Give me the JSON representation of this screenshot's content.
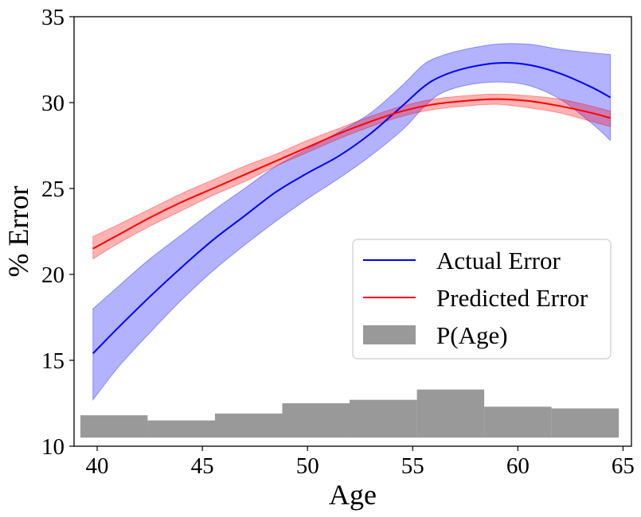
{
  "chart_data": {
    "type": "line",
    "title": "",
    "xlabel": "Age",
    "ylabel": "% Error",
    "xlim": [
      38.9,
      65.4
    ],
    "ylim": [
      10,
      35
    ],
    "xticks": [
      "40",
      "45",
      "50",
      "55",
      "60",
      "65"
    ],
    "yticks": [
      "10",
      "15",
      "20",
      "25",
      "30",
      "35"
    ],
    "grid": false,
    "legend_position": "center-right",
    "series": [
      {
        "name": "Actual Error",
        "kind": "line_with_band",
        "color": "#0000ff",
        "band_color": "#0000ff",
        "x": [
          39.8,
          41,
          42.5,
          44,
          45.5,
          47,
          48.5,
          50,
          51.5,
          53,
          54.5,
          55.5,
          56.3,
          57.5,
          59,
          60.5,
          62,
          63.5,
          64.4
        ],
        "y": [
          15.4,
          16.9,
          18.7,
          20.4,
          22.0,
          23.4,
          24.8,
          25.9,
          26.9,
          28.2,
          29.8,
          30.9,
          31.5,
          32.0,
          32.3,
          32.2,
          31.7,
          30.9,
          30.3
        ],
        "lower": [
          12.7,
          14.6,
          16.6,
          18.5,
          20.2,
          21.7,
          23.1,
          24.4,
          25.6,
          26.9,
          28.4,
          29.7,
          30.5,
          31.0,
          31.2,
          31.0,
          30.2,
          28.8,
          27.8
        ],
        "upper": [
          18.0,
          19.3,
          20.9,
          22.3,
          23.7,
          25.0,
          26.3,
          27.3,
          28.3,
          29.4,
          31.0,
          32.2,
          32.7,
          33.1,
          33.4,
          33.4,
          33.1,
          32.9,
          32.8
        ]
      },
      {
        "name": "Predicted Error",
        "kind": "line_with_band",
        "color": "#ff0000",
        "band_color": "#ff0000",
        "x": [
          39.8,
          41,
          42.5,
          44,
          45.5,
          47,
          48.5,
          50,
          51.5,
          53,
          54.5,
          56,
          57.5,
          59,
          60.5,
          62,
          63.5,
          64.4
        ],
        "y": [
          21.5,
          22.3,
          23.3,
          24.2,
          25.0,
          25.8,
          26.6,
          27.4,
          28.2,
          28.9,
          29.5,
          29.9,
          30.1,
          30.2,
          30.1,
          29.8,
          29.4,
          29.1
        ],
        "lower": [
          20.9,
          21.8,
          22.8,
          23.7,
          24.6,
          25.4,
          26.3,
          27.1,
          27.9,
          28.6,
          29.2,
          29.6,
          29.8,
          29.9,
          29.7,
          29.4,
          28.9,
          28.6
        ],
        "upper": [
          22.2,
          22.9,
          23.8,
          24.7,
          25.5,
          26.3,
          27.0,
          27.8,
          28.5,
          29.2,
          29.8,
          30.2,
          30.4,
          30.5,
          30.4,
          30.2,
          29.8,
          29.5
        ]
      }
    ],
    "histogram": {
      "name": "P(Age)",
      "color": "#999999",
      "baseline": 10.5,
      "bins": [
        39.2,
        42.4,
        45.6,
        48.8,
        52.0,
        55.2,
        58.4,
        61.6,
        64.8
      ],
      "tops": [
        11.8,
        11.5,
        11.9,
        12.5,
        12.7,
        13.3,
        12.3,
        12.2
      ]
    }
  }
}
